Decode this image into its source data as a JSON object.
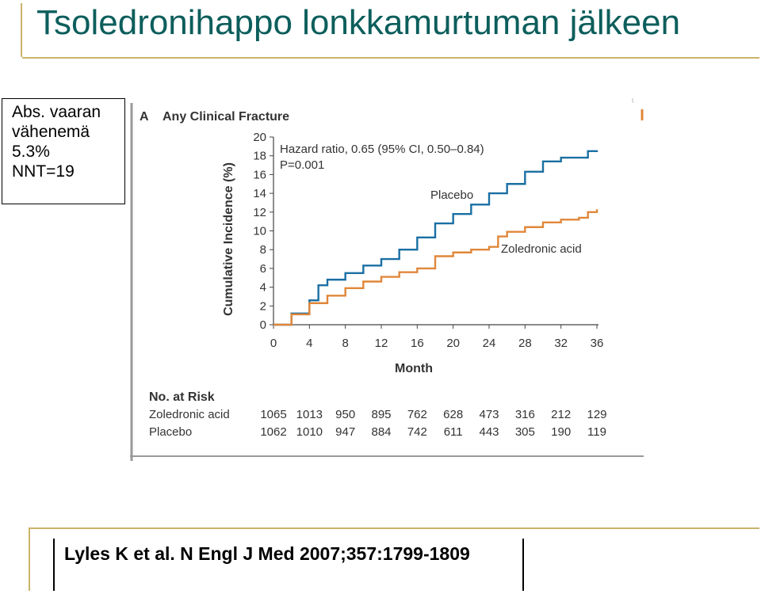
{
  "slide": {
    "title": "Tsoledronihappo lonkkamurtuman jälkeen",
    "abs_box": {
      "lines": [
        "Abs. vaaran",
        "vähenemä",
        "5.3%",
        "NNT=19"
      ]
    },
    "citation": "Lyles K et al. N Engl J Med 2007;357:1799-1809"
  },
  "chart_data": {
    "type": "line",
    "panel_letter": "A",
    "title": "Any Clinical Fracture",
    "xlabel": "Month",
    "ylabel": "Cumulative Incidence (%)",
    "xlim": [
      0,
      36
    ],
    "ylim": [
      0,
      20
    ],
    "x_ticks": [
      0,
      4,
      8,
      12,
      16,
      20,
      24,
      28,
      32,
      36
    ],
    "y_ticks": [
      0,
      2,
      4,
      6,
      8,
      10,
      12,
      14,
      16,
      18,
      20
    ],
    "annotation_line1": "Hazard ratio, 0.65 (95% CI, 0.50–0.84)",
    "annotation_line2": "P=0.001",
    "series": [
      {
        "name": "Placebo",
        "color": "#1a6fa3",
        "x": [
          0,
          2,
          4,
          5,
          6,
          8,
          10,
          12,
          14,
          16,
          18,
          20,
          22,
          24,
          26,
          28,
          30,
          32,
          34,
          35,
          36
        ],
        "y": [
          0,
          1.2,
          2.6,
          4.2,
          4.8,
          5.5,
          6.3,
          7.0,
          8.0,
          9.3,
          10.8,
          11.8,
          12.8,
          14.0,
          15.0,
          16.3,
          17.4,
          17.8,
          17.8,
          18.5,
          18.6
        ]
      },
      {
        "name": "Zoledronic acid",
        "color": "#e0873a",
        "x": [
          0,
          2,
          4,
          6,
          8,
          10,
          12,
          14,
          16,
          18,
          20,
          22,
          24,
          25,
          26,
          28,
          30,
          32,
          34,
          35,
          36
        ],
        "y": [
          0,
          1.1,
          2.3,
          3.1,
          3.9,
          4.6,
          5.1,
          5.6,
          6.0,
          7.3,
          7.7,
          8.0,
          8.3,
          9.4,
          9.9,
          10.4,
          10.9,
          11.2,
          11.4,
          12.0,
          12.3
        ]
      }
    ],
    "series_labels": [
      "Placebo",
      "Zoledronic acid"
    ],
    "risk_table": {
      "header": "No. at Risk",
      "rows": [
        {
          "label": "Zoledronic acid",
          "values": [
            "1065",
            "1013",
            "950",
            "895",
            "762",
            "628",
            "473",
            "316",
            "212",
            "129"
          ]
        },
        {
          "label": "Placebo",
          "values": [
            "1062",
            "1010",
            "947",
            "884",
            "742",
            "611",
            "443",
            "305",
            "190",
            "119"
          ]
        }
      ]
    },
    "grid": false,
    "legend": "inline labels"
  }
}
